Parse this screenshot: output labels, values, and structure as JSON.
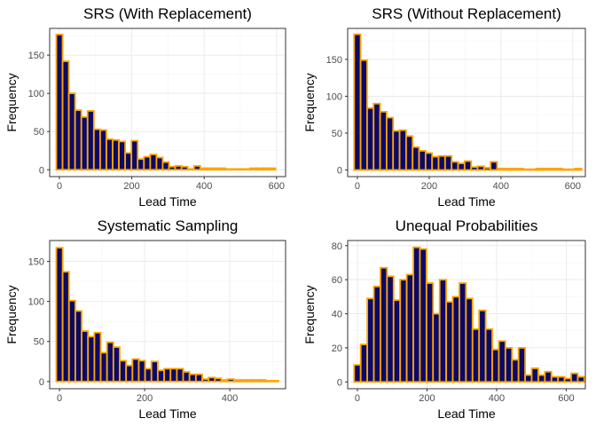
{
  "colors": {
    "bar_fill": "#0a0a6b",
    "bar_outline": "#ffa500",
    "panel_border": "#333333",
    "grid": "#ebebeb",
    "tick_text": "#4d4d4d"
  },
  "chart_data": [
    {
      "type": "bar",
      "title": "SRS (With Replacement)",
      "xlabel": "Lead Time",
      "ylabel": "Frequency",
      "bin_width": 17.3,
      "bin_start": 0,
      "x_ticks": [
        0,
        200,
        400,
        600
      ],
      "y_ticks": [
        0,
        50,
        100,
        150
      ],
      "xlim": [
        -27,
        625
      ],
      "ylim": [
        -9,
        185
      ],
      "values": [
        177,
        142,
        100,
        78,
        69,
        77,
        53,
        52,
        40,
        39,
        37,
        22,
        38,
        14,
        17,
        20,
        16,
        10,
        4,
        5,
        4,
        1,
        5,
        2,
        2,
        2,
        2,
        1,
        1,
        1,
        1,
        2,
        2,
        2,
        2
      ]
    },
    {
      "type": "bar",
      "title": "SRS (Without Replacement)",
      "xlabel": "Lead Time",
      "ylabel": "Frequency",
      "bin_width": 18.1,
      "bin_start": 0,
      "x_ticks": [
        0,
        200,
        400,
        600
      ],
      "y_ticks": [
        0,
        50,
        100,
        150
      ],
      "xlim": [
        -27,
        635
      ],
      "ylim": [
        -9,
        192
      ],
      "values": [
        184,
        149,
        84,
        90,
        79,
        71,
        53,
        54,
        46,
        31,
        26,
        23,
        18,
        19,
        19,
        11,
        9,
        12,
        4,
        5,
        3,
        11,
        2,
        2,
        2,
        2,
        1,
        1,
        2,
        2,
        2,
        2,
        1,
        1,
        2
      ]
    },
    {
      "type": "bar",
      "title": "Systematic Sampling",
      "xlabel": "Lead Time",
      "ylabel": "Frequency",
      "bin_width": 14.9,
      "bin_start": 0,
      "x_ticks": [
        0,
        200,
        400
      ],
      "y_ticks": [
        0,
        50,
        100,
        150
      ],
      "xlim": [
        -23,
        531
      ],
      "ylim": [
        -9,
        176
      ],
      "values": [
        167,
        137,
        101,
        88,
        63,
        56,
        61,
        36,
        49,
        43,
        26,
        20,
        28,
        26,
        16,
        25,
        14,
        16,
        16,
        16,
        12,
        9,
        9,
        3,
        5,
        4,
        2,
        3,
        2,
        2,
        2,
        2,
        2,
        1,
        1
      ]
    },
    {
      "type": "bar",
      "title": "Unequal Probabilities",
      "xlabel": "Lead Time",
      "ylabel": "Frequency",
      "bin_width": 18.9,
      "bin_start": 0,
      "x_ticks": [
        0,
        200,
        400,
        600
      ],
      "y_ticks": [
        0,
        20,
        40,
        60,
        80
      ],
      "xlim": [
        -28,
        655
      ],
      "ylim": [
        -4,
        83
      ],
      "values": [
        10,
        22,
        49,
        56,
        67,
        62,
        48,
        60,
        63,
        79,
        78,
        58,
        40,
        60,
        47,
        50,
        58,
        49,
        31,
        42,
        31,
        19,
        24,
        20,
        13,
        20,
        4,
        8,
        4,
        6,
        3,
        3,
        2,
        5,
        3
      ]
    }
  ]
}
